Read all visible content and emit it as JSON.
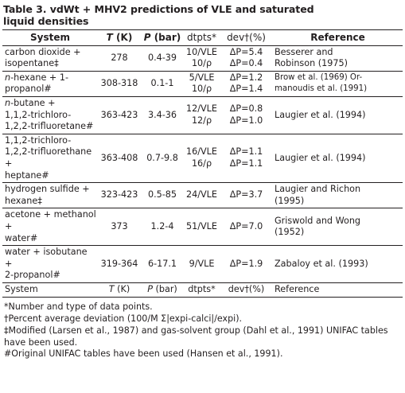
{
  "caption": {
    "line1": "Table 3. vdWt + MHV2 predictions of VLE and saturated",
    "line2": "liquid densities"
  },
  "header": {
    "system": "System",
    "t_var": "T",
    "t_unit": " (K)",
    "p_var": "P",
    "p_unit": " (bar)",
    "dtpts": "dtpts*",
    "dev": "dev†(%)",
    "reference": "Reference"
  },
  "rows": [
    {
      "system_lines": [
        "carbon dioxide +",
        "isopentane‡"
      ],
      "t": "278",
      "p": "0.4-39",
      "dtpts": [
        "10/VLE",
        "10/ρ"
      ],
      "dev": [
        "ΔP=5.4",
        "ΔP=0.4"
      ],
      "reference_lines": [
        "Besserer and",
        "Robinson (1975)"
      ]
    },
    {
      "system_prefix": "n",
      "system_lines": [
        "-hexane + 1-propanol#"
      ],
      "t": "308-318",
      "p": "0.1-1",
      "dtpts": [
        "5/VLE",
        "10/ρ"
      ],
      "dev": [
        "ΔP=1.2",
        "ΔP=1.4"
      ],
      "reference_lines": [
        "Brow et al. (1969) Or-",
        "manoudis et al. (1991)"
      ]
    },
    {
      "system_prefix": "n",
      "system_lines": [
        "-butane +",
        "1,1,2-trichloro-",
        "1,2,2-trifluoretane#"
      ],
      "t": "363-423",
      "p": "3.4-36",
      "dtpts": [
        "12/VLE",
        "12/ρ"
      ],
      "dev": [
        "ΔP=0.8",
        "ΔP=1.0"
      ],
      "reference_lines": [
        "Laugier et al. (1994)"
      ]
    },
    {
      "system_lines": [
        "1,1,2-trichloro-",
        "1,2,2-trifluorethane +",
        "heptane#"
      ],
      "t": "363-408",
      "p": "0.7-9.8",
      "dtpts": [
        "16/VLE",
        "16/ρ"
      ],
      "dev": [
        "ΔP=1.1",
        "ΔP=1.1"
      ],
      "reference_lines": [
        "Laugier et al. (1994)"
      ]
    },
    {
      "system_lines": [
        "hydrogen sulfide +",
        "hexane‡"
      ],
      "t": "323-423",
      "p": "0.5-85",
      "dtpts": [
        "24/VLE"
      ],
      "dev": [
        "ΔP=3.7"
      ],
      "reference_lines": [
        "Laugier and Richon",
        "(1995)"
      ]
    },
    {
      "system_lines": [
        "acetone + methanol +",
        "water#"
      ],
      "t": "373",
      "p": "1.2-4",
      "dtpts": [
        "51/VLE"
      ],
      "dev": [
        "ΔP=7.0"
      ],
      "reference_lines": [
        "Griswold and Wong",
        "(1952)"
      ]
    },
    {
      "system_lines": [
        "water + isobutane +",
        "2-propanol#"
      ],
      "t": "319-364",
      "p": "6-17.1",
      "dtpts": [
        "9/VLE"
      ],
      "dev": [
        "ΔP=1.9"
      ],
      "reference_lines": [
        "Zabaloy et al. (1993)"
      ]
    }
  ],
  "footer_row": {
    "system": "System",
    "t_var": "T",
    "t_unit": " (K)",
    "p_var": "P",
    "p_unit": " (bar)",
    "dtpts": "dtpts*",
    "dev": "dev†(%)",
    "reference": "Reference"
  },
  "notes": [
    "*Number and type of data points.",
    "†Percent average deviation (100/M Σ|expi-calci|/expi).",
    "‡Modified (Larsen et al., 1987) and gas-solvent group (Dahl et al., 1991) UNIFAC tables have been used.",
    "#Original UNIFAC tables have been used (Hansen et al., 1991)."
  ]
}
